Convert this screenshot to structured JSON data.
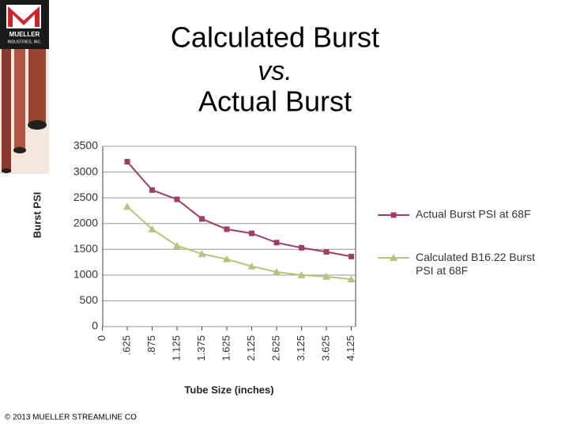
{
  "slide": {
    "logo_name": "MUELLER",
    "logo_sub": "INDUSTRIES, INC.",
    "title_lines": [
      "Calculated Burst",
      "vs.",
      "Actual Burst"
    ],
    "footer": "© 2013 MUELLER STREAMLINE CO"
  },
  "chart_data": {
    "type": "line",
    "y_label": "Burst PSI",
    "x_label": "Tube Size (inches)",
    "categories": [
      "0",
      ".625",
      ".875",
      "1.125",
      "1.375",
      "1.625",
      "2.125",
      "2.625",
      "3.125",
      "3.625",
      "4.125"
    ],
    "series": [
      {
        "name": "Actual Burst PSI at 68F",
        "color": "#a03c68",
        "marker": "square",
        "values": [
          null,
          3200,
          2650,
          2470,
          2090,
          1890,
          1810,
          1630,
          1530,
          1450,
          1360
        ]
      },
      {
        "name": "Calculated B16.22 Burst PSI at 68F",
        "color": "#b3c57a",
        "marker": "triangle",
        "values": [
          null,
          2330,
          1890,
          1570,
          1410,
          1310,
          1170,
          1060,
          1000,
          970,
          920
        ]
      }
    ],
    "ylim": [
      0,
      3500
    ],
    "yticks": [
      0,
      500,
      1000,
      1500,
      2000,
      2500,
      3000,
      3500
    ],
    "grid": true,
    "legend": "right"
  }
}
